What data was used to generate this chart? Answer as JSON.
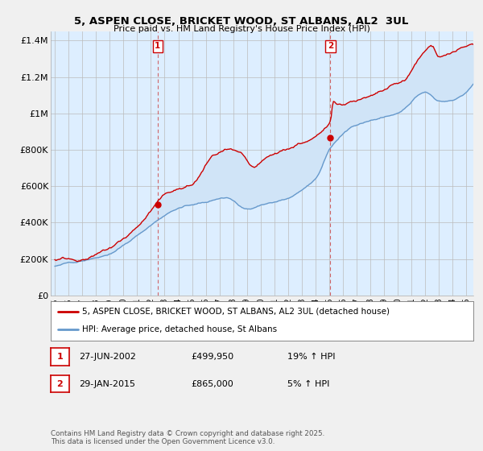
{
  "title": "5, ASPEN CLOSE, BRICKET WOOD, ST ALBANS, AL2  3UL",
  "subtitle": "Price paid vs. HM Land Registry's House Price Index (HPI)",
  "ylabel_ticks": [
    "£0",
    "£200K",
    "£400K",
    "£600K",
    "£800K",
    "£1M",
    "£1.2M",
    "£1.4M"
  ],
  "ytick_values": [
    0,
    200000,
    400000,
    600000,
    800000,
    1000000,
    1200000,
    1400000
  ],
  "ylim": [
    0,
    1450000
  ],
  "xlim_start": 1994.7,
  "xlim_end": 2025.5,
  "sale1_year": 2002.487,
  "sale1_price": 499950,
  "sale2_year": 2015.08,
  "sale2_price": 865000,
  "property_color": "#cc0000",
  "hpi_color": "#6699cc",
  "fill_color": "#d0e4f7",
  "legend_property": "5, ASPEN CLOSE, BRICKET WOOD, ST ALBANS, AL2 3UL (detached house)",
  "legend_hpi": "HPI: Average price, detached house, St Albans",
  "annotation1_date": "27-JUN-2002",
  "annotation1_price": "£499,950",
  "annotation1_hpi": "19% ↑ HPI",
  "annotation2_date": "29-JAN-2015",
  "annotation2_price": "£865,000",
  "annotation2_hpi": "5% ↑ HPI",
  "footnote": "Contains HM Land Registry data © Crown copyright and database right 2025.\nThis data is licensed under the Open Government Licence v3.0.",
  "bg_color": "#f0f0f0",
  "plot_bg_color": "#ddeeff"
}
